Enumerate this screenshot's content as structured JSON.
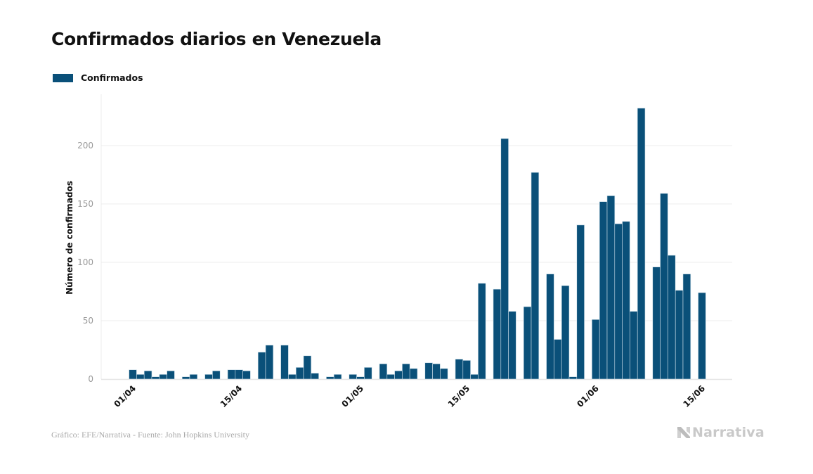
{
  "title": "Confirmados diarios en Venezuela",
  "legend": {
    "label": "Confirmados",
    "color": "#0a5079"
  },
  "footer": {
    "source": "Gráfico: EFE/Narrativa - Fuente: John Hopkins University"
  },
  "brand": {
    "name": "Narrativa",
    "icon": "narrativa-logo-icon"
  },
  "chart_data": {
    "type": "bar",
    "title": "Confirmados diarios en Venezuela",
    "xlabel": "",
    "ylabel": "Número de confirmados",
    "ylim": [
      0,
      245
    ],
    "yticks": [
      0,
      50,
      100,
      150,
      200
    ],
    "grid": true,
    "legend_position": "top-left",
    "bar_color": "#0a5079",
    "xtick_labels": [
      {
        "label": "01/04",
        "category": "01/04"
      },
      {
        "label": "15/04",
        "category": "15/04"
      },
      {
        "label": "01/05",
        "category": "01/05"
      },
      {
        "label": "15/05",
        "category": "15/05"
      },
      {
        "label": "01/06",
        "category": "01/06"
      },
      {
        "label": "15/06",
        "category": "15/06"
      }
    ],
    "categories": [
      "01/04",
      "02/04",
      "03/04",
      "04/04",
      "05/04",
      "06/04",
      "07/04",
      "08/04",
      "09/04",
      "10/04",
      "11/04",
      "12/04",
      "13/04",
      "14/04",
      "15/04",
      "16/04",
      "17/04",
      "18/04",
      "19/04",
      "20/04",
      "21/04",
      "22/04",
      "23/04",
      "24/04",
      "25/04",
      "26/04",
      "27/04",
      "28/04",
      "29/04",
      "30/04",
      "01/05",
      "02/05",
      "03/05",
      "04/05",
      "05/05",
      "06/05",
      "07/05",
      "08/05",
      "09/05",
      "10/05",
      "11/05",
      "12/05",
      "13/05",
      "14/05",
      "15/05",
      "16/05",
      "17/05",
      "18/05",
      "19/05",
      "20/05",
      "21/05",
      "22/05",
      "23/05",
      "24/05",
      "25/05",
      "26/05",
      "27/05",
      "28/05",
      "29/05",
      "30/05",
      "31/05",
      "01/06",
      "02/06",
      "03/06",
      "04/06",
      "05/06",
      "06/06",
      "07/06",
      "08/06",
      "09/06",
      "10/06",
      "11/06",
      "12/06",
      "13/06",
      "14/06",
      "15/06"
    ],
    "series": [
      {
        "name": "Confirmados",
        "values": [
          8,
          4,
          7,
          2,
          4,
          7,
          0,
          2,
          4,
          0,
          4,
          7,
          0,
          8,
          8,
          7,
          0,
          23,
          29,
          0,
          29,
          4,
          10,
          20,
          5,
          0,
          2,
          4,
          0,
          4,
          2,
          10,
          0,
          13,
          4,
          7,
          13,
          9,
          0,
          14,
          13,
          9,
          0,
          17,
          16,
          4,
          82,
          0,
          77,
          206,
          58,
          0,
          62,
          177,
          0,
          90,
          34,
          80,
          2,
          132,
          0,
          51,
          152,
          157,
          133,
          135,
          58,
          232,
          0,
          96,
          159,
          106,
          76,
          90,
          0,
          74
        ]
      }
    ]
  }
}
